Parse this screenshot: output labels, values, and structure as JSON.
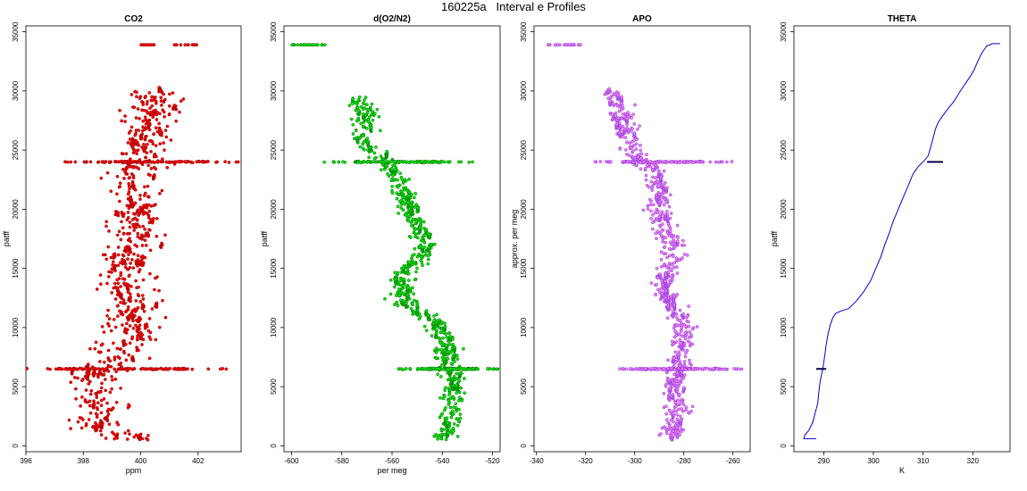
{
  "figure": {
    "title": "160225a   Interval e Profiles"
  },
  "chart_data": [
    {
      "type": "scatter",
      "title": "CO2",
      "xlabel": "ppm",
      "ylabel": "patff",
      "xlim": [
        396,
        403.5
      ],
      "ylim": [
        -500,
        35500
      ],
      "xticks": [
        396,
        398,
        400,
        402
      ],
      "yticks": [
        0,
        5000,
        10000,
        15000,
        20000,
        25000,
        30000,
        35000
      ],
      "color": "#ff0000",
      "edge_color": "#8b0000",
      "profile": [
        [
          400.0,
          500
        ],
        [
          398.5,
          1500
        ],
        [
          398.7,
          3000
        ],
        [
          398.3,
          4500
        ],
        [
          398.3,
          6000
        ],
        [
          399.2,
          7500
        ],
        [
          399.5,
          9000
        ],
        [
          399.6,
          10500
        ],
        [
          399.6,
          12000
        ],
        [
          399.4,
          13500
        ],
        [
          399.5,
          15000
        ],
        [
          399.5,
          16500
        ],
        [
          399.9,
          18000
        ],
        [
          399.8,
          19500
        ],
        [
          399.8,
          21000
        ],
        [
          399.8,
          22500
        ],
        [
          400.1,
          24000
        ],
        [
          400.3,
          25500
        ],
        [
          400.4,
          27000
        ],
        [
          400.5,
          28500
        ],
        [
          400.3,
          30000
        ]
      ],
      "spread": 1.2,
      "top_band": {
        "y": 33900,
        "x_range": [
          400.0,
          402.0
        ]
      },
      "spikes": [
        {
          "y": 6500,
          "x_range": [
            397.0,
            401.5
          ]
        },
        {
          "y": 24000,
          "x_range": [
            398.5,
            402.3
          ]
        }
      ]
    },
    {
      "type": "scatter",
      "title": "d(O2/N2)",
      "xlabel": "per meg",
      "ylabel": "patff",
      "xlim": [
        -603,
        -517
      ],
      "ylim": [
        -500,
        35500
      ],
      "xticks": [
        -600,
        -580,
        -560,
        -540,
        -520
      ],
      "yticks": [
        0,
        5000,
        10000,
        15000,
        20000,
        25000,
        30000,
        35000
      ],
      "color": "#00ee00",
      "edge_color": "#006400",
      "profile": [
        [
          -540,
          500
        ],
        [
          -537,
          2000
        ],
        [
          -536,
          3500
        ],
        [
          -535,
          5000
        ],
        [
          -537,
          6500
        ],
        [
          -538,
          8000
        ],
        [
          -541,
          9500
        ],
        [
          -543,
          10500
        ],
        [
          -555,
          12000
        ],
        [
          -556,
          13500
        ],
        [
          -554,
          15000
        ],
        [
          -546,
          16500
        ],
        [
          -548,
          18000
        ],
        [
          -553,
          19500
        ],
        [
          -554,
          21000
        ],
        [
          -557,
          22500
        ],
        [
          -562,
          24000
        ],
        [
          -571,
          25000
        ],
        [
          -572,
          26500
        ],
        [
          -570,
          28000
        ],
        [
          -574,
          29500
        ]
      ],
      "spread": 6,
      "top_band": {
        "y": 33900,
        "x_range": [
          -600,
          -586
        ]
      },
      "spikes": [
        {
          "y": 6500,
          "x_range": [
            -550,
            -526
          ]
        },
        {
          "y": 24000,
          "x_range": [
            -575,
            -540
          ]
        }
      ]
    },
    {
      "type": "scatter",
      "title": "APO",
      "xlabel": "",
      "ylabel": "approx. per meg",
      "xlim": [
        -341,
        -253
      ],
      "ylim": [
        -500,
        35500
      ],
      "xticks": [
        -340,
        -320,
        -300,
        -280,
        -260
      ],
      "yticks": [
        0,
        5000,
        10000,
        15000,
        20000,
        25000,
        30000,
        35000
      ],
      "color": "#ee82ee",
      "edge_color": "#8a2be2",
      "profile": [
        [
          -285,
          500
        ],
        [
          -283,
          2000
        ],
        [
          -283,
          3500
        ],
        [
          -284,
          5000
        ],
        [
          -283,
          6500
        ],
        [
          -280,
          8000
        ],
        [
          -280,
          9500
        ],
        [
          -282,
          11000
        ],
        [
          -287,
          12500
        ],
        [
          -288,
          14000
        ],
        [
          -285,
          15500
        ],
        [
          -285,
          17000
        ],
        [
          -288,
          18500
        ],
        [
          -290,
          20000
        ],
        [
          -290,
          21500
        ],
        [
          -291,
          23000
        ],
        [
          -300,
          24500
        ],
        [
          -302,
          26000
        ],
        [
          -305,
          27500
        ],
        [
          -307,
          29000
        ],
        [
          -310,
          30000
        ]
      ],
      "spread": 6,
      "top_band": {
        "y": 33900,
        "x_range": [
          -337,
          -322
        ]
      },
      "spikes": [
        {
          "y": 6500,
          "x_range": [
            -300,
            -265
          ]
        },
        {
          "y": 24000,
          "x_range": [
            -305,
            -272
          ]
        }
      ]
    },
    {
      "type": "line",
      "title": "THETA",
      "xlabel": "K",
      "ylabel": "patff",
      "xlim": [
        284,
        327.5
      ],
      "ylim": [
        -500,
        35500
      ],
      "xticks": [
        290,
        300,
        310,
        320
      ],
      "yticks": [
        0,
        5000,
        10000,
        15000,
        20000,
        25000,
        30000,
        35000
      ],
      "color": "#0000cc",
      "x": [
        288.5,
        286.0,
        286.2,
        287.0,
        287.8,
        288.3,
        288.8,
        289.0,
        289.3,
        289.8,
        290.2,
        290.5,
        290.9,
        291.3,
        291.8,
        292.4,
        293.5,
        295.0,
        296.5,
        298.0,
        299.5,
        300.5,
        301.5,
        302.3,
        303.2,
        304.0,
        305.0,
        306.0,
        307.0,
        308.0,
        309.0,
        310.0,
        311.0,
        311.5,
        312.0,
        312.5,
        313.0,
        313.6,
        314.3,
        315.0,
        315.8,
        316.5,
        317.2,
        318.0,
        318.8,
        319.6,
        320.3,
        321.0,
        321.8,
        322.8,
        324.0,
        325.5
      ],
      "y": [
        600,
        600,
        900,
        1300,
        2000,
        2800,
        3600,
        4500,
        5500,
        6500,
        7600,
        8600,
        9500,
        10200,
        10800,
        11200,
        11400,
        11600,
        12200,
        13000,
        14000,
        15000,
        16000,
        17000,
        18000,
        19000,
        20000,
        21000,
        22000,
        23000,
        23600,
        24000,
        24500,
        25200,
        26000,
        26800,
        27300,
        27700,
        28100,
        28500,
        28900,
        29300,
        29800,
        30300,
        30800,
        31300,
        31800,
        32500,
        33200,
        33800,
        34000,
        34000
      ],
      "markers": [
        {
          "y": 6500,
          "x_range": [
            288.5,
            290.5
          ]
        },
        {
          "y": 24000,
          "x_range": [
            310.8,
            314.0
          ]
        }
      ]
    }
  ]
}
